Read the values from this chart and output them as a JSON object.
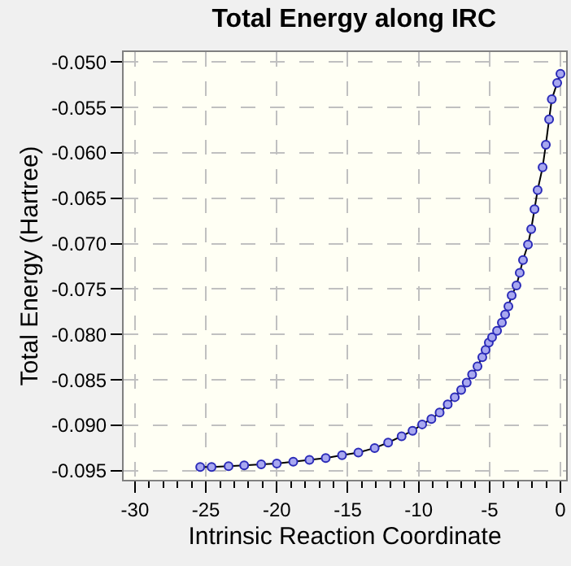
{
  "chart_data": {
    "type": "line",
    "title": "Total Energy along IRC",
    "xlabel": "Intrinsic Reaction Coordinate",
    "ylabel": "Total Energy (Hartree)",
    "x": [
      -25.4,
      -24.6,
      -23.4,
      -22.3,
      -21.1,
      -20.0,
      -18.84,
      -17.7,
      -16.55,
      -15.4,
      -14.25,
      -13.1,
      -12.15,
      -11.2,
      -10.43,
      -9.75,
      -9.1,
      -8.52,
      -7.95,
      -7.45,
      -7.0,
      -6.61,
      -6.23,
      -5.85,
      -5.51,
      -5.28,
      -5.05,
      -4.82,
      -4.47,
      -4.13,
      -3.9,
      -3.67,
      -3.44,
      -3.1,
      -2.87,
      -2.64,
      -2.29,
      -2.06,
      -1.83,
      -1.61,
      -1.26,
      -1.03,
      -0.8,
      -0.61,
      -0.23,
      0.0
    ],
    "series": [
      {
        "color": "#2b2bb8",
        "values": [
          -0.0946,
          -0.0946,
          -0.0945,
          -0.0944,
          -0.0943,
          -0.0942,
          -0.094,
          -0.0938,
          -0.0936,
          -0.0933,
          -0.093,
          -0.0925,
          -0.0919,
          -0.0912,
          -0.0906,
          -0.0899,
          -0.0893,
          -0.0886,
          -0.0877,
          -0.0869,
          -0.0861,
          -0.0853,
          -0.0844,
          -0.0835,
          -0.0825,
          -0.0817,
          -0.0809,
          -0.0803,
          -0.0796,
          -0.0787,
          -0.0778,
          -0.0769,
          -0.0757,
          -0.0746,
          -0.0732,
          -0.0718,
          -0.0701,
          -0.0684,
          -0.0662,
          -0.0641,
          -0.0616,
          -0.0591,
          -0.0563,
          -0.0541,
          -0.0523,
          -0.0513
        ]
      }
    ],
    "xlim": [
      -30.8,
      0.4
    ],
    "ylim": [
      -0.096,
      -0.0489
    ],
    "xticks": [
      -30,
      -25,
      -20,
      -15,
      -10,
      -5,
      0
    ],
    "yticks": [
      {
        "value": -0.05,
        "label": "-0.050"
      },
      {
        "value": -0.055,
        "label": "-0.055"
      },
      {
        "value": -0.06,
        "label": "-0.060"
      },
      {
        "value": -0.065,
        "label": "-0.065"
      },
      {
        "value": -0.07,
        "label": "-0.070"
      },
      {
        "value": -0.075,
        "label": "-0.075"
      },
      {
        "value": -0.08,
        "label": "-0.080"
      },
      {
        "value": -0.085,
        "label": "-0.085"
      },
      {
        "value": -0.09,
        "label": "-0.090"
      },
      {
        "value": -0.095,
        "label": "-0.095"
      }
    ],
    "grid": true,
    "legend": false,
    "marker": "circle",
    "line_style": "solid"
  }
}
